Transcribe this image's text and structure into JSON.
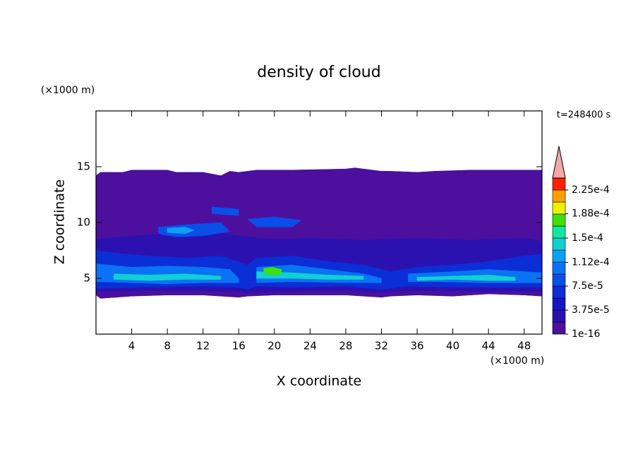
{
  "chart_data": {
    "type": "contour",
    "title": "density of cloud",
    "y_unit": "(×1000 m)",
    "x_unit": "(×1000 m)",
    "time_label": "t=248400 s",
    "xlabel": "X coordinate",
    "ylabel": "Z coordinate",
    "xlim": [
      0,
      50
    ],
    "ylim": [
      0,
      20
    ],
    "xticks": [
      4,
      8,
      12,
      16,
      20,
      24,
      28,
      32,
      36,
      40,
      44,
      48
    ],
    "yticks": [
      5,
      10,
      15
    ],
    "colorbar": {
      "levels": [
        1e-16,
        1.875e-05,
        3.75e-05,
        5.625e-05,
        7.5e-05,
        9.375e-05,
        0.0001125,
        0.00013125,
        0.00015,
        0.00016875,
        0.0001875,
        0.00020625,
        0.000225,
        0.00024375
      ],
      "colors": [
        "#4c0f9e",
        "#2b12b0",
        "#1616c4",
        "#0c2ed6",
        "#0a4ee8",
        "#0a72f4",
        "#0ca0f4",
        "#10d0d0",
        "#10e8a0",
        "#40e000",
        "#f0f000",
        "#ffa000",
        "#ff2000"
      ],
      "extend_color": "#f4a8a8",
      "ticks": [
        {
          "value": 1e-16,
          "label": "1e-16"
        },
        {
          "value": 3.75e-05,
          "label": "3.75e-5"
        },
        {
          "value": 7.5e-05,
          "label": "7.5e-5"
        },
        {
          "value": 0.000112,
          "label": "1.12e-4"
        },
        {
          "value": 0.00015,
          "label": "1.5e-4"
        },
        {
          "value": 0.000188,
          "label": "1.88e-4"
        },
        {
          "value": 0.000225,
          "label": "2.25e-4"
        }
      ]
    },
    "contours": [
      {
        "color": "#4c0f9e",
        "x": [
          0,
          0,
          0.5,
          3,
          4,
          8,
          9,
          12,
          14,
          15,
          16,
          18,
          22,
          28,
          29,
          32,
          33,
          36,
          38,
          42,
          48,
          50,
          50,
          48,
          44,
          40,
          36,
          33,
          32,
          28,
          20,
          17,
          16,
          12,
          8,
          4,
          0.5
        ],
        "y": [
          3.5,
          14.2,
          14.5,
          14.5,
          14.7,
          14.7,
          14.5,
          14.5,
          14.2,
          14.6,
          14.5,
          14.7,
          14.7,
          14.8,
          14.9,
          14.6,
          14.6,
          14.5,
          14.6,
          14.7,
          14.7,
          14.7,
          3.4,
          3.5,
          3.6,
          3.4,
          3.5,
          3.4,
          3.3,
          3.5,
          3.5,
          3.4,
          3.3,
          3.5,
          3.5,
          3.4,
          3.2
        ]
      },
      {
        "color": "#2b12b0",
        "x": [
          0,
          4,
          8,
          12,
          16,
          20,
          24,
          30,
          36,
          42,
          48,
          50,
          50,
          44,
          36,
          33,
          32,
          28,
          20,
          17,
          16,
          8,
          0
        ],
        "y": [
          8.5,
          8.8,
          9.0,
          9.3,
          8.8,
          8.5,
          8.6,
          8.4,
          8.6,
          8.4,
          8.6,
          8.3,
          3.8,
          3.8,
          3.9,
          3.8,
          3.7,
          3.9,
          3.8,
          3.7,
          3.8,
          3.9,
          3.8
        ]
      },
      {
        "color": "#0c2ed6",
        "x": [
          0,
          3,
          6,
          10,
          14,
          17,
          18,
          22,
          26,
          30,
          33,
          36,
          40,
          44,
          48,
          50,
          50,
          46,
          40,
          35,
          33,
          32,
          28,
          22,
          18,
          17,
          16,
          12,
          6,
          0
        ],
        "y": [
          7.5,
          7.2,
          7.0,
          6.8,
          7.0,
          6.2,
          6.8,
          7.0,
          6.5,
          6.2,
          5.6,
          6.0,
          6.2,
          6.5,
          7.0,
          7.2,
          4.2,
          4.2,
          4.2,
          4.3,
          4.1,
          4.0,
          4.3,
          4.2,
          4.3,
          4.0,
          4.2,
          4.3,
          4.2,
          4.1
        ]
      },
      {
        "color": "#0a4ee8",
        "x": [
          7,
          10,
          14,
          15,
          12,
          9,
          7
        ],
        "y": [
          9.6,
          9.8,
          10.0,
          9.2,
          8.8,
          8.7,
          9.0
        ]
      },
      {
        "color": "#0a4ee8",
        "x": [
          13,
          16,
          16,
          13
        ],
        "y": [
          11.4,
          11.2,
          10.6,
          10.8
        ]
      },
      {
        "color": "#0a4ee8",
        "x": [
          17,
          20,
          23,
          22,
          18
        ],
        "y": [
          10.3,
          10.5,
          10.2,
          9.6,
          9.6
        ]
      },
      {
        "color": "#0ca0f4",
        "x": [
          8,
          10,
          11,
          10,
          8
        ],
        "y": [
          9.5,
          9.6,
          9.3,
          9.0,
          9.1
        ]
      },
      {
        "color": "#0a72f4",
        "x": [
          0,
          4,
          8,
          12,
          15,
          16,
          16,
          12,
          8,
          4,
          0
        ],
        "y": [
          6.3,
          6.0,
          6.1,
          6.0,
          5.8,
          5.0,
          4.6,
          4.6,
          4.5,
          4.6,
          4.7
        ]
      },
      {
        "color": "#0a72f4",
        "x": [
          18,
          22,
          26,
          30,
          32,
          32,
          28,
          22,
          18
        ],
        "y": [
          6.0,
          6.2,
          5.8,
          5.4,
          5.0,
          4.6,
          4.6,
          4.7,
          4.6
        ]
      },
      {
        "color": "#0a72f4",
        "x": [
          35,
          40,
          44,
          48,
          50,
          50,
          44,
          38,
          35
        ],
        "y": [
          5.4,
          5.6,
          5.8,
          5.6,
          5.5,
          4.6,
          4.6,
          4.7,
          4.7
        ]
      },
      {
        "color": "#10d0d0",
        "x": [
          2,
          6,
          10,
          14,
          14,
          10,
          6,
          2
        ],
        "y": [
          5.4,
          5.3,
          5.4,
          5.2,
          4.9,
          4.9,
          4.8,
          4.9
        ]
      },
      {
        "color": "#10d0d0",
        "x": [
          18,
          22,
          26,
          30,
          30,
          26,
          22,
          18
        ],
        "y": [
          5.6,
          5.5,
          5.3,
          5.2,
          4.9,
          4.9,
          5.0,
          5.0
        ]
      },
      {
        "color": "#10d0d0",
        "x": [
          36,
          40,
          44,
          47,
          47,
          44,
          40,
          36
        ],
        "y": [
          5.1,
          5.2,
          5.3,
          5.1,
          4.8,
          4.8,
          4.9,
          4.8
        ]
      },
      {
        "color": "#40e000",
        "x": [
          18.8,
          19.8,
          20.8,
          20.8,
          19.8,
          18.8
        ],
        "y": [
          5.9,
          6.0,
          5.8,
          5.4,
          5.3,
          5.5
        ]
      }
    ]
  }
}
